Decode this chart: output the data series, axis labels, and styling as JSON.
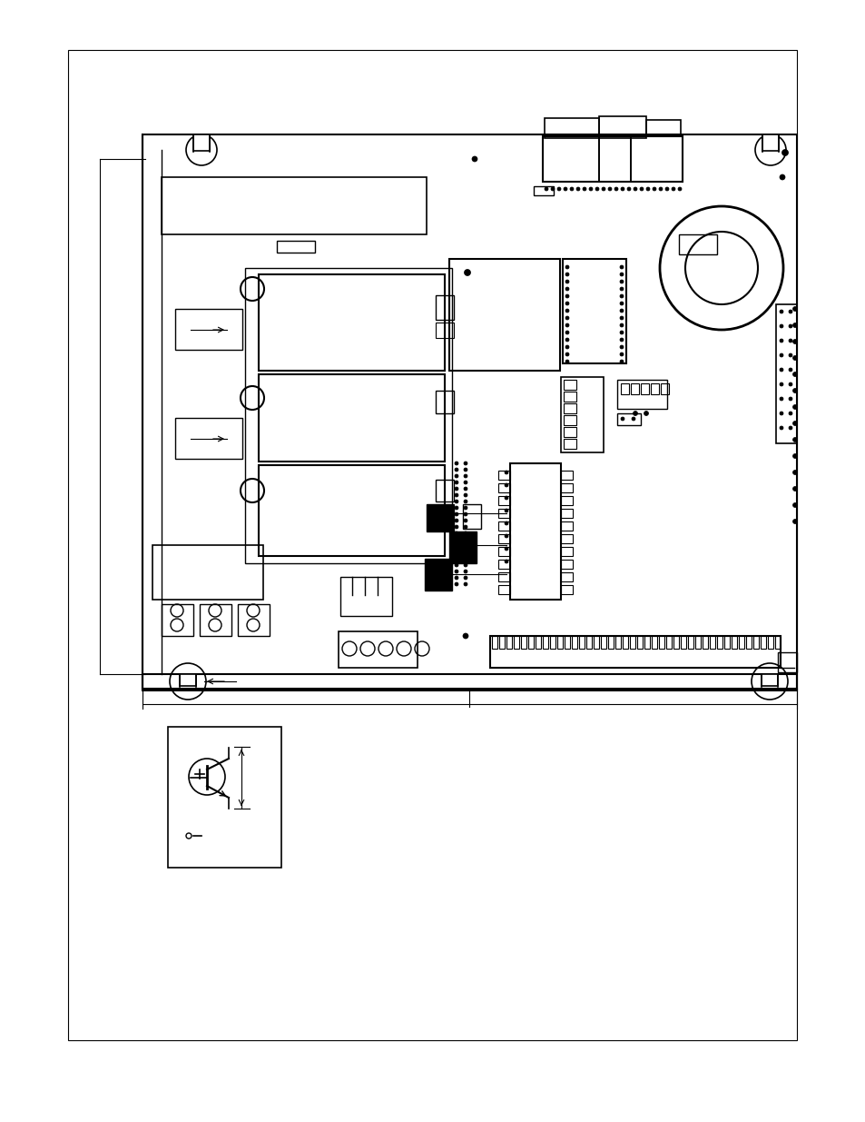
{
  "bg_color": "#ffffff",
  "fig_width": 9.54,
  "fig_height": 12.35
}
